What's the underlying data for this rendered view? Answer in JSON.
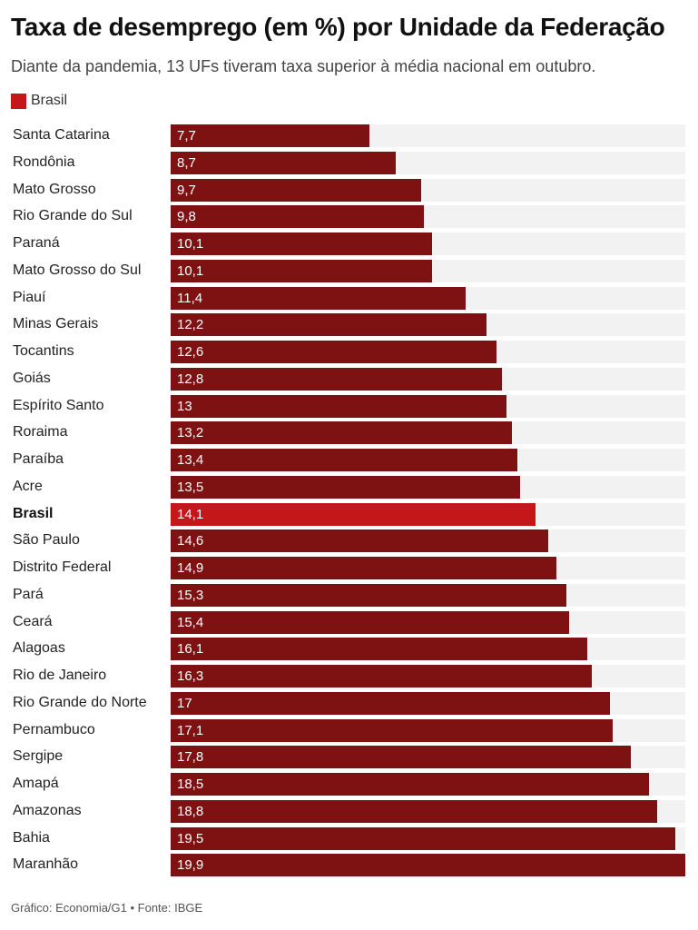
{
  "title": "Taxa de desemprego (em %) por Unidade da Federação",
  "subtitle": "Diante da pandemia, 13 UFs tiveram taxa superior à média nacional em outubro.",
  "legend": {
    "label": "Brasil",
    "color": "#c4171a"
  },
  "footer": "Gráfico: Economia/G1 • Fonte: IBGE",
  "colors": {
    "bar": "#7e1212",
    "highlight": "#c4171a",
    "track": "#f2f2f2"
  },
  "chart_data": {
    "type": "bar",
    "orientation": "horizontal",
    "title": "Taxa de desemprego (em %) por Unidade da Federação",
    "subtitle": "Diante da pandemia, 13 UFs tiveram taxa superior à média nacional em outubro.",
    "xlim": [
      0,
      19.9
    ],
    "grid": false,
    "legend_position": "top-left",
    "highlight_category": "Brasil",
    "categories": [
      "Santa Catarina",
      "Rondônia",
      "Mato Grosso",
      "Rio Grande do Sul",
      "Paraná",
      "Mato Grosso do Sul",
      "Piauí",
      "Minas Gerais",
      "Tocantins",
      "Goiás",
      "Espírito Santo",
      "Roraima",
      "Paraíba",
      "Acre",
      "Brasil",
      "São Paulo",
      "Distrito Federal",
      "Pará",
      "Ceará",
      "Alagoas",
      "Rio de Janeiro",
      "Rio Grande do Norte",
      "Pernambuco",
      "Sergipe",
      "Amapá",
      "Amazonas",
      "Bahia",
      "Maranhão"
    ],
    "values": [
      7.7,
      8.7,
      9.7,
      9.8,
      10.1,
      10.1,
      11.4,
      12.2,
      12.6,
      12.8,
      13,
      13.2,
      13.4,
      13.5,
      14.1,
      14.6,
      14.9,
      15.3,
      15.4,
      16.1,
      16.3,
      17,
      17.1,
      17.8,
      18.5,
      18.8,
      19.5,
      19.9
    ],
    "value_labels": [
      "7,7",
      "8,7",
      "9,7",
      "9,8",
      "10,1",
      "10,1",
      "11,4",
      "12,2",
      "12,6",
      "12,8",
      "13",
      "13,2",
      "13,4",
      "13,5",
      "14,1",
      "14,6",
      "14,9",
      "15,3",
      "15,4",
      "16,1",
      "16,3",
      "17",
      "17,1",
      "17,8",
      "18,5",
      "18,8",
      "19,5",
      "19,9"
    ]
  }
}
